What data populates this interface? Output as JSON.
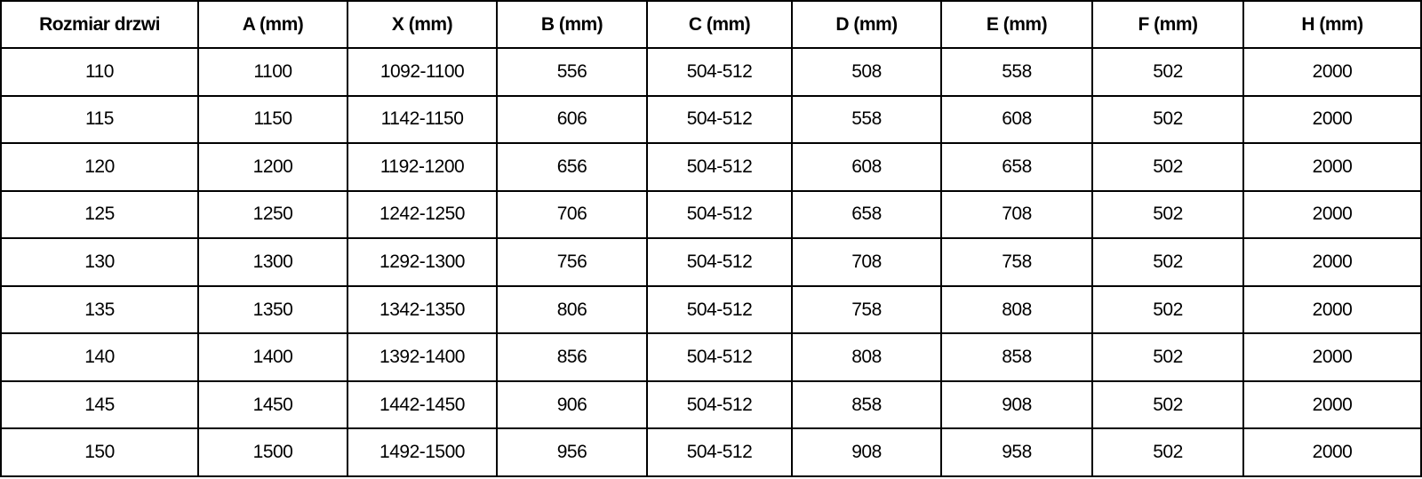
{
  "table": {
    "title": "door-size-specifications",
    "headers": [
      "Rozmiar drzwi",
      "A (mm)",
      "X (mm)",
      "B (mm)",
      "C (mm)",
      "D (mm)",
      "E (mm)",
      "F (mm)",
      "H (mm)"
    ],
    "rows": [
      [
        "110",
        "1100",
        "1092-1100",
        "556",
        "504-512",
        "508",
        "558",
        "502",
        "2000"
      ],
      [
        "115",
        "1150",
        "1142-1150",
        "606",
        "504-512",
        "558",
        "608",
        "502",
        "2000"
      ],
      [
        "120",
        "1200",
        "1192-1200",
        "656",
        "504-512",
        "608",
        "658",
        "502",
        "2000"
      ],
      [
        "125",
        "1250",
        "1242-1250",
        "706",
        "504-512",
        "658",
        "708",
        "502",
        "2000"
      ],
      [
        "130",
        "1300",
        "1292-1300",
        "756",
        "504-512",
        "708",
        "758",
        "502",
        "2000"
      ],
      [
        "135",
        "1350",
        "1342-1350",
        "806",
        "504-512",
        "758",
        "808",
        "502",
        "2000"
      ],
      [
        "140",
        "1400",
        "1392-1400",
        "856",
        "504-512",
        "808",
        "858",
        "502",
        "2000"
      ],
      [
        "145",
        "1450",
        "1442-1450",
        "906",
        "504-512",
        "858",
        "908",
        "502",
        "2000"
      ],
      [
        "150",
        "1500",
        "1492-1500",
        "956",
        "504-512",
        "908",
        "958",
        "502",
        "2000"
      ]
    ]
  },
  "colors": {
    "border": "#000000",
    "text": "#000000",
    "background": "#ffffff"
  }
}
